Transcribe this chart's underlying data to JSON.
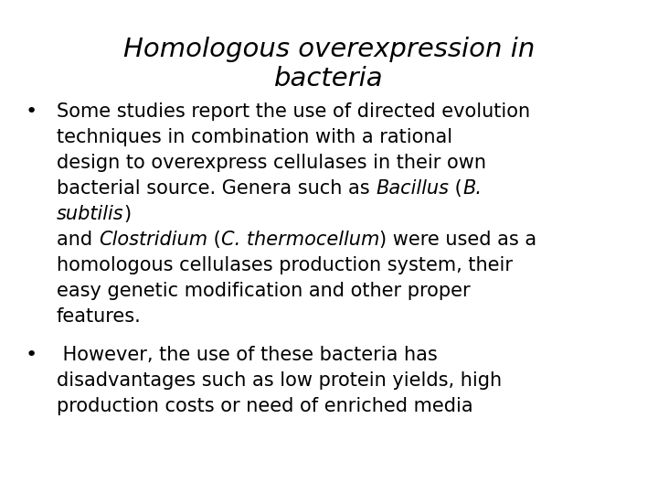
{
  "title_line1": "Homologous overexpression in",
  "title_line2": "bacteria",
  "background_color": "#ffffff",
  "text_color": "#000000",
  "title_fontsize": 21,
  "body_fontsize": 15,
  "figsize": [
    7.2,
    5.4
  ],
  "dpi": 100,
  "lines_b1": [
    [
      [
        "Some studies report the use of directed evolution",
        false
      ]
    ],
    [
      [
        "techniques in combination with a rational",
        false
      ]
    ],
    [
      [
        "design to overexpress cellulases in their own",
        false
      ]
    ],
    [
      [
        "bacterial source. Genera such as ",
        false
      ],
      [
        "Bacillus",
        true
      ],
      [
        " (",
        false
      ],
      [
        "B.",
        true
      ]
    ],
    [
      [
        "subtilis",
        true
      ],
      [
        ")",
        false
      ]
    ],
    [
      [
        "and ",
        false
      ],
      [
        "Clostridium",
        true
      ],
      [
        " (",
        false
      ],
      [
        "C. thermocellum",
        true
      ],
      [
        ") were used as a",
        false
      ]
    ],
    [
      [
        "homologous cellulases production system, their",
        false
      ]
    ],
    [
      [
        "easy genetic modification and other proper",
        false
      ]
    ],
    [
      [
        "features.",
        false
      ]
    ]
  ],
  "lines_b2": [
    [
      [
        " However, the use of these bacteria has",
        false
      ]
    ],
    [
      [
        "disadvantages such as low protein yields, high",
        false
      ]
    ],
    [
      [
        "production costs or need of enriched media",
        false
      ]
    ]
  ]
}
